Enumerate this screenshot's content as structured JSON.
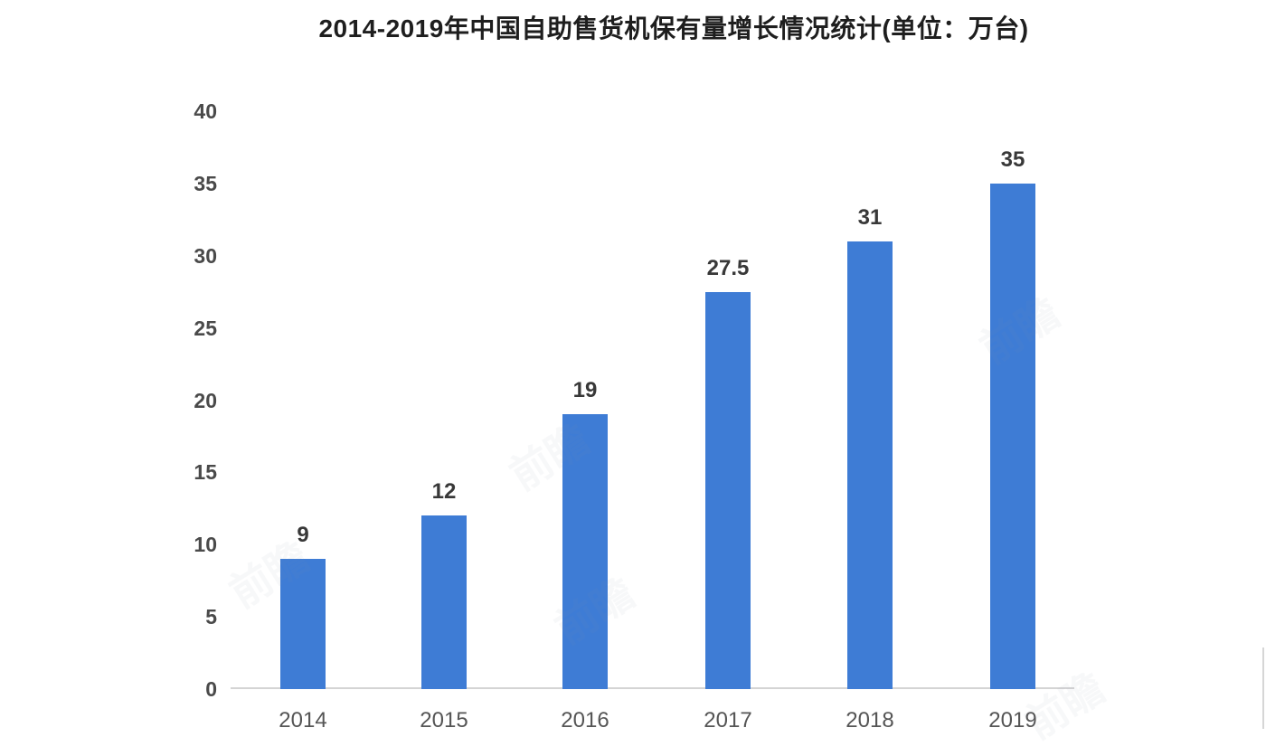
{
  "header": {
    "title": "2014-2019年中国自助售货机保有量增长情况统计(单位：万台)"
  },
  "chart_data": {
    "type": "bar",
    "title": "2014-2019年中国自助售货机保有量增长情况统计(单位：万台)",
    "unit": "万台",
    "categories": [
      "2014",
      "2015",
      "2016",
      "2017",
      "2018",
      "2019"
    ],
    "values": [
      9,
      12,
      19,
      27.5,
      31,
      35
    ],
    "data_labels": [
      "9",
      "12",
      "19",
      "27.5",
      "31",
      "35"
    ],
    "xlabel": "",
    "ylabel": "",
    "ylim": [
      0,
      40
    ],
    "yticks": [
      0,
      5,
      10,
      15,
      20,
      25,
      30,
      35,
      40
    ],
    "grid": false,
    "legend": null,
    "bar_color": "#3e7cd5",
    "axis_line_color": "#d4d4d4",
    "tick_label_color": "#4a4a4a",
    "value_label_color": "#383838",
    "x_label_color": "#555555",
    "title_color": "#1e1e1e",
    "background_color": "#ffffff"
  },
  "watermark": {
    "text": "前瞻"
  }
}
